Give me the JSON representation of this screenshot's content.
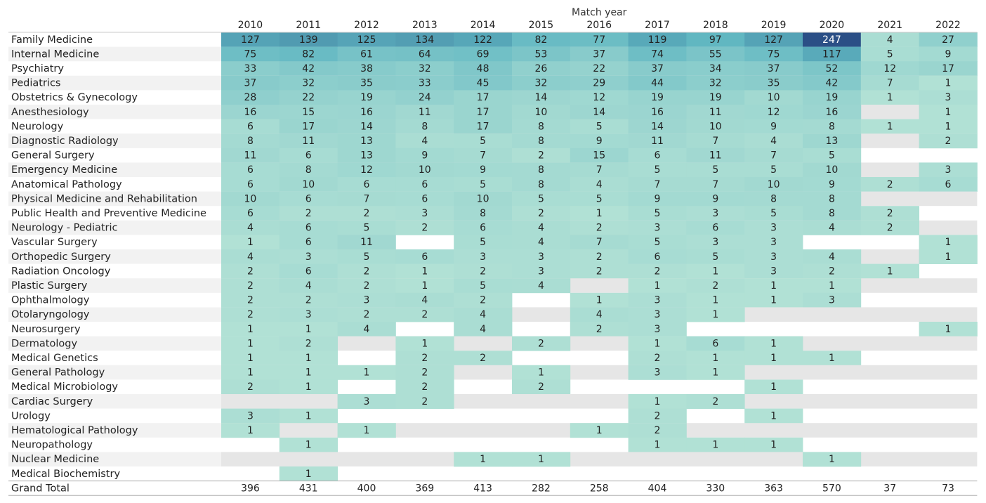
{
  "chart_data": {
    "type": "heatmap",
    "column_header": "Match year",
    "years": [
      "2010",
      "2011",
      "2012",
      "2013",
      "2014",
      "2015",
      "2016",
      "2017",
      "2018",
      "2019",
      "2020",
      "2021",
      "2022"
    ],
    "rows": [
      {
        "label": "Family Medicine",
        "values": [
          127,
          139,
          125,
          134,
          122,
          82,
          77,
          119,
          97,
          127,
          247,
          4,
          27
        ]
      },
      {
        "label": "Internal Medicine",
        "values": [
          75,
          82,
          61,
          64,
          69,
          53,
          37,
          74,
          55,
          75,
          117,
          5,
          9
        ]
      },
      {
        "label": "Psychiatry",
        "values": [
          33,
          42,
          38,
          32,
          48,
          26,
          22,
          37,
          34,
          37,
          52,
          12,
          17
        ]
      },
      {
        "label": "Pediatrics",
        "values": [
          37,
          32,
          35,
          33,
          45,
          32,
          29,
          44,
          32,
          35,
          42,
          7,
          1
        ]
      },
      {
        "label": "Obstetrics & Gynecology",
        "values": [
          28,
          22,
          19,
          24,
          17,
          14,
          12,
          19,
          19,
          10,
          19,
          1,
          3
        ]
      },
      {
        "label": "Anesthesiology",
        "values": [
          16,
          15,
          16,
          11,
          17,
          10,
          14,
          16,
          11,
          12,
          16,
          null,
          1
        ]
      },
      {
        "label": "Neurology",
        "values": [
          6,
          17,
          14,
          8,
          17,
          8,
          5,
          14,
          10,
          9,
          8,
          1,
          1
        ]
      },
      {
        "label": "Diagnostic Radiology",
        "values": [
          8,
          11,
          13,
          4,
          5,
          8,
          9,
          11,
          7,
          4,
          13,
          null,
          2
        ]
      },
      {
        "label": "General Surgery",
        "values": [
          11,
          6,
          13,
          9,
          7,
          2,
          15,
          6,
          11,
          7,
          5,
          null,
          null
        ]
      },
      {
        "label": "Emergency Medicine",
        "values": [
          6,
          8,
          12,
          10,
          9,
          8,
          7,
          5,
          5,
          5,
          10,
          null,
          3
        ]
      },
      {
        "label": "Anatomical Pathology",
        "values": [
          6,
          10,
          6,
          6,
          5,
          8,
          4,
          7,
          7,
          10,
          9,
          2,
          6
        ]
      },
      {
        "label": "Physical Medicine and Rehabilitation",
        "values": [
          10,
          6,
          7,
          6,
          10,
          5,
          5,
          9,
          9,
          8,
          8,
          null,
          null
        ]
      },
      {
        "label": "Public Health and Preventive Medicine",
        "values": [
          6,
          2,
          2,
          3,
          8,
          2,
          1,
          5,
          3,
          5,
          8,
          2,
          null
        ]
      },
      {
        "label": "Neurology - Pediatric",
        "values": [
          4,
          6,
          5,
          2,
          6,
          4,
          2,
          3,
          6,
          3,
          4,
          2,
          null
        ]
      },
      {
        "label": "Vascular Surgery",
        "values": [
          1,
          6,
          11,
          null,
          5,
          4,
          7,
          5,
          3,
          3,
          null,
          null,
          1
        ]
      },
      {
        "label": "Orthopedic Surgery",
        "values": [
          4,
          3,
          5,
          6,
          3,
          3,
          2,
          6,
          5,
          3,
          4,
          null,
          1
        ]
      },
      {
        "label": "Radiation Oncology",
        "values": [
          2,
          6,
          2,
          1,
          2,
          3,
          2,
          2,
          1,
          3,
          2,
          1,
          null
        ]
      },
      {
        "label": "Plastic Surgery",
        "values": [
          2,
          4,
          2,
          1,
          5,
          4,
          null,
          1,
          2,
          1,
          1,
          null,
          null
        ]
      },
      {
        "label": "Ophthalmology",
        "values": [
          2,
          2,
          3,
          4,
          2,
          null,
          1,
          3,
          1,
          1,
          3,
          null,
          null
        ]
      },
      {
        "label": "Otolaryngology",
        "values": [
          2,
          3,
          2,
          2,
          4,
          null,
          4,
          3,
          1,
          null,
          null,
          null,
          null
        ]
      },
      {
        "label": "Neurosurgery",
        "values": [
          1,
          1,
          4,
          null,
          4,
          null,
          2,
          3,
          null,
          null,
          null,
          null,
          1
        ]
      },
      {
        "label": "Dermatology",
        "values": [
          1,
          2,
          null,
          1,
          null,
          2,
          null,
          1,
          6,
          1,
          null,
          null,
          null
        ]
      },
      {
        "label": "Medical Genetics",
        "values": [
          1,
          1,
          null,
          2,
          2,
          null,
          null,
          2,
          1,
          1,
          1,
          null,
          null
        ]
      },
      {
        "label": "General Pathology",
        "values": [
          1,
          1,
          1,
          2,
          null,
          1,
          null,
          3,
          1,
          null,
          null,
          null,
          null
        ]
      },
      {
        "label": "Medical Microbiology",
        "values": [
          2,
          1,
          null,
          2,
          null,
          2,
          null,
          null,
          null,
          1,
          null,
          null,
          null
        ]
      },
      {
        "label": "Cardiac Surgery",
        "values": [
          null,
          null,
          3,
          2,
          null,
          null,
          null,
          1,
          2,
          null,
          null,
          null,
          null
        ]
      },
      {
        "label": "Urology",
        "values": [
          3,
          1,
          null,
          null,
          null,
          null,
          null,
          2,
          null,
          1,
          null,
          null,
          null
        ]
      },
      {
        "label": "Hematological Pathology",
        "values": [
          1,
          null,
          1,
          null,
          null,
          null,
          1,
          2,
          null,
          null,
          null,
          null,
          null
        ]
      },
      {
        "label": "Neuropathology",
        "values": [
          null,
          1,
          null,
          null,
          null,
          null,
          null,
          1,
          1,
          1,
          null,
          null,
          null
        ]
      },
      {
        "label": "Nuclear Medicine",
        "values": [
          null,
          null,
          null,
          null,
          1,
          1,
          null,
          null,
          null,
          null,
          1,
          null,
          null
        ]
      },
      {
        "label": "Medical Biochemistry",
        "values": [
          null,
          1,
          null,
          null,
          null,
          null,
          null,
          null,
          null,
          null,
          null,
          null,
          null
        ]
      }
    ],
    "grand_total": {
      "label": "Grand Total",
      "values": [
        396,
        431,
        400,
        369,
        413,
        282,
        258,
        404,
        330,
        363,
        570,
        37,
        73
      ]
    },
    "color_scale": {
      "low": "#b5e3d6",
      "mid": "#5fb6c1",
      "high": "#2b4f86",
      "empty_band": "#e6e6e6"
    }
  }
}
